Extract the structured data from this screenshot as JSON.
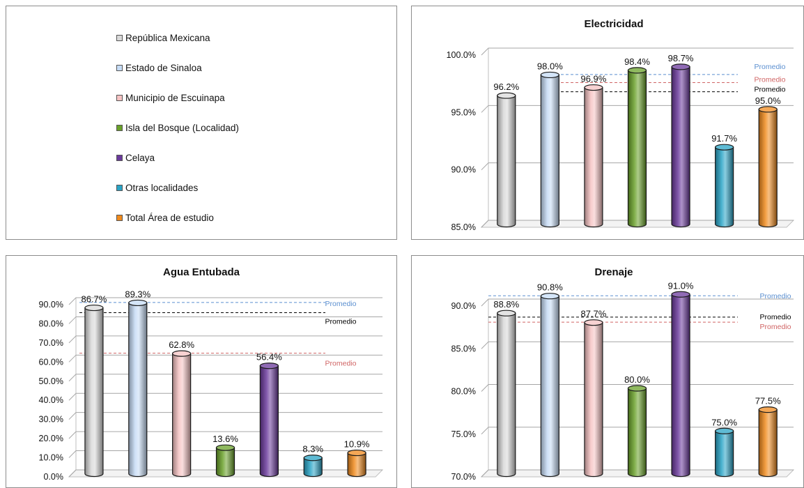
{
  "legend": {
    "items": [
      {
        "label": "República Mexicana",
        "color": "#d9d9d9"
      },
      {
        "label": "Estado de Sinaloa",
        "color": "#c6dcf6"
      },
      {
        "label": "Municipio de Escuinapa",
        "color": "#f6c3c3"
      },
      {
        "label": "Isla del Bosque (Localidad)",
        "color": "#6aa12a"
      },
      {
        "label": "Celaya",
        "color": "#6b3a9c"
      },
      {
        "label": "Otras localidades",
        "color": "#2aa4c6"
      },
      {
        "label": "Total Área de estudio",
        "color": "#f08a1d"
      }
    ]
  },
  "chart_data": [
    {
      "type": "bar",
      "title": "Electricidad",
      "categories": [
        "República Mexicana",
        "Estado de Sinaloa",
        "Municipio de Escuinapa",
        "Isla del Bosque (Localidad)",
        "Celaya",
        "Otras localidades",
        "Total Área de estudio"
      ],
      "values": [
        96.2,
        98.0,
        96.9,
        98.4,
        98.7,
        91.7,
        95.0
      ],
      "value_labels": [
        "96.2%",
        "98.0%",
        "96.9%",
        "98.4%",
        "98.7%",
        "91.7%",
        "95.0%"
      ],
      "ylim": [
        85,
        100
      ],
      "yticks": [
        85,
        90,
        95,
        100
      ],
      "ytick_labels": [
        "85.0%",
        "90.0%",
        "95.0%",
        "100.0%"
      ],
      "grid": true,
      "averages": [
        {
          "label": "Promedio",
          "value": 98.0,
          "color": "#5b8fd0"
        },
        {
          "label": "Promedio",
          "value": 97.3,
          "color": "#d06464"
        },
        {
          "label": "Promedio",
          "value": 96.5,
          "color": "#000000"
        }
      ]
    },
    {
      "type": "bar",
      "title": "Agua Entubada",
      "categories": [
        "República Mexicana",
        "Estado de Sinaloa",
        "Municipio de Escuinapa",
        "Isla del Bosque (Localidad)",
        "Celaya",
        "Otras localidades",
        "Total Área de estudio"
      ],
      "values": [
        86.7,
        89.3,
        62.8,
        13.6,
        56.4,
        8.3,
        10.9
      ],
      "value_labels": [
        "86.7%",
        "89.3%",
        "62.8%",
        "13.6%",
        "56.4%",
        "8.3%",
        "10.9%"
      ],
      "ylim": [
        0,
        90
      ],
      "yticks": [
        0,
        10,
        20,
        30,
        40,
        50,
        60,
        70,
        80,
        90
      ],
      "ytick_labels": [
        "0.0%",
        "10.0%",
        "20.0%",
        "30.0%",
        "40.0%",
        "50.0%",
        "60.0%",
        "70.0%",
        "80.0%",
        "90.0%"
      ],
      "grid": true,
      "averages": [
        {
          "label": "Promedio",
          "value": 89.3,
          "color": "#5b8fd0"
        },
        {
          "label": "Promedio",
          "value": 84.0,
          "color": "#000000"
        },
        {
          "label": "Promedio",
          "value": 62.8,
          "color": "#d06464"
        }
      ]
    },
    {
      "type": "bar",
      "title": "Drenaje",
      "categories": [
        "República Mexicana",
        "Estado de Sinaloa",
        "Municipio de Escuinapa",
        "Isla del Bosque (Localidad)",
        "Celaya",
        "Otras localidades",
        "Total Área de estudio"
      ],
      "values": [
        88.8,
        90.8,
        87.7,
        80.0,
        91.0,
        75.0,
        77.5
      ],
      "value_labels": [
        "88.8%",
        "90.8%",
        "87.7%",
        "80.0%",
        "91.0%",
        "75.0%",
        "77.5%"
      ],
      "ylim": [
        70,
        90
      ],
      "yticks": [
        70,
        75,
        80,
        85,
        90
      ],
      "ytick_labels": [
        "70.0%",
        "75.0%",
        "80.0%",
        "85.0%",
        "90.0%"
      ],
      "grid": true,
      "averages": [
        {
          "label": "Promedio",
          "value": 90.8,
          "color": "#5b8fd0"
        },
        {
          "label": "Promedio",
          "value": 88.3,
          "color": "#000000"
        },
        {
          "label": "Promedio",
          "value": 87.7,
          "color": "#d06464"
        }
      ]
    }
  ]
}
